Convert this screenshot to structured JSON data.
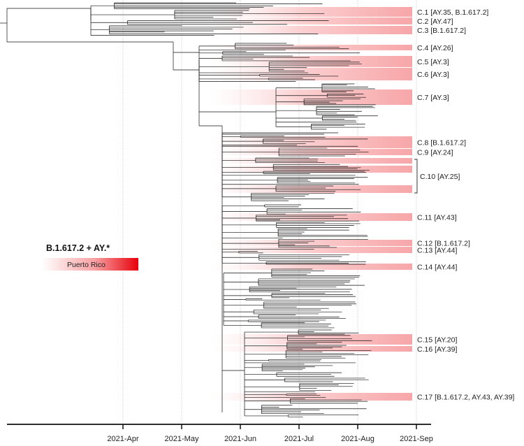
{
  "legend": {
    "title": "B.1.617.2 + AY.*",
    "bar_label": "Puerto Rico",
    "color_start": "#ffffff",
    "color_end": "#e8000b"
  },
  "axis": {
    "ticks": [
      "2021-Apr",
      "2021-May",
      "2021-Jun",
      "2021-Jul",
      "2021-Aug",
      "2021-Sep"
    ]
  },
  "band_color": "#f7a6a8",
  "clades": [
    {
      "label": "C.1 [AY.35, B.1.617.2]",
      "rows": [
        [
          10,
          24
        ]
      ]
    },
    {
      "label": "C.2 [AY.47]",
      "rows": [
        [
          25,
          35
        ]
      ]
    },
    {
      "label": "C.3 [B.1.617.2]",
      "rows": [
        [
          37,
          49
        ]
      ]
    },
    {
      "label": "C.4 [AY.26]",
      "rows": [
        [
          64,
          72
        ]
      ]
    },
    {
      "label": "C.5 [AY.3]",
      "rows": [
        [
          80,
          96
        ]
      ]
    },
    {
      "label": "C.6 [AY.3]",
      "rows": [
        [
          97,
          115
        ]
      ]
    },
    {
      "label": "C.7 [AY.3]",
      "rows": [
        [
          128,
          150
        ]
      ]
    },
    {
      "label": "C.8 [B.1.617.2]",
      "rows": [
        [
          195,
          212
        ]
      ]
    },
    {
      "label": "C.9 [AY.24]",
      "rows": [
        [
          213,
          222
        ]
      ]
    },
    {
      "label": "C.10 [AY.25]",
      "rows": [
        [
          226,
          234
        ],
        [
          237,
          247
        ],
        [
          265,
          276
        ]
      ],
      "bracket": true
    },
    {
      "label": "C.11 [AY.43]",
      "rows": [
        [
          305,
          316
        ]
      ]
    },
    {
      "label": "C.12 [B.1.617.2]",
      "rows": [
        [
          343,
          352
        ]
      ]
    },
    {
      "label": "C.13 [AY.44]",
      "rows": [
        [
          353,
          362
        ]
      ]
    },
    {
      "label": "C.14 [AY.44]",
      "rows": [
        [
          377,
          386
        ]
      ]
    },
    {
      "label": "C.15 [AY.20]",
      "rows": [
        [
          478,
          493
        ]
      ]
    },
    {
      "label": "C.16 [AY.39]",
      "rows": [
        [
          495,
          503
        ]
      ]
    },
    {
      "label": "C.17 [B.1.617.2, AY.43, AY.39]",
      "rows": [
        [
          562,
          573
        ]
      ]
    }
  ]
}
